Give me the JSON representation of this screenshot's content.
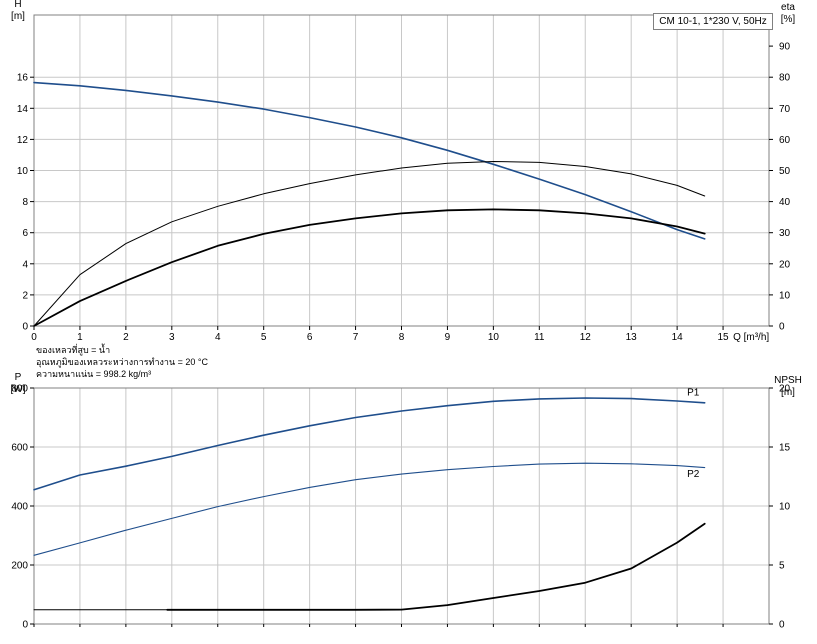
{
  "legend_box": {
    "text": "CM 10-1, 1*230 V, 50Hz"
  },
  "info": {
    "line1": "ของเหลวที่สูบ = น้ำ",
    "line2": "อุณหภูมิของเหลวระหว่างการทำงาน = 20 °C",
    "line3": "ความหนาแน่น = 998.2 kg/m³"
  },
  "chart_data": [
    {
      "type": "line",
      "title": "",
      "x_axis": {
        "label": "Q [m³/h]",
        "ticks": [
          0,
          1,
          2,
          3,
          4,
          5,
          6,
          7,
          8,
          9,
          10,
          11,
          12,
          13,
          14,
          15
        ],
        "range": [
          0,
          16
        ]
      },
      "y_axis_left": {
        "label": [
          "H",
          "[m]"
        ],
        "ticks": [
          0,
          2,
          4,
          6,
          8,
          10,
          12,
          14,
          16
        ],
        "range": [
          0,
          20
        ]
      },
      "y_axis_right": {
        "label": [
          "eta",
          "[%]"
        ],
        "ticks": [
          0,
          10,
          20,
          30,
          40,
          50,
          60,
          70,
          80,
          90
        ],
        "range": [
          0,
          100
        ]
      },
      "grid": true,
      "series": [
        {
          "name": "H",
          "axis": "left",
          "color": "#1f4e8c",
          "width": 1.6,
          "x": [
            0,
            1,
            2,
            3,
            4,
            5,
            6,
            7,
            8,
            9,
            10,
            11,
            12,
            13,
            14,
            14.6
          ],
          "y": [
            15.65,
            15.45,
            15.15,
            14.8,
            14.4,
            13.95,
            13.4,
            12.8,
            12.1,
            11.3,
            10.4,
            9.45,
            8.45,
            7.35,
            6.2,
            5.6
          ]
        },
        {
          "name": "eta_thin",
          "axis": "right",
          "color": "#000000",
          "width": 1.0,
          "x": [
            0,
            1,
            2,
            3,
            4,
            5,
            6,
            7,
            8,
            9,
            10,
            11,
            12,
            13,
            14,
            14.6
          ],
          "y": [
            0,
            16.5,
            26.5,
            33.5,
            38.5,
            42.5,
            45.8,
            48.6,
            50.8,
            52.3,
            52.9,
            52.6,
            51.3,
            48.9,
            45.2,
            41.8
          ]
        },
        {
          "name": "eta_bold",
          "axis": "right",
          "color": "#000000",
          "width": 1.8,
          "x": [
            0,
            1,
            2,
            3,
            4,
            5,
            6,
            7,
            8,
            9,
            10,
            11,
            12,
            13,
            14,
            14.6
          ],
          "y": [
            0,
            8,
            14.5,
            20.5,
            25.8,
            29.6,
            32.5,
            34.6,
            36.2,
            37.2,
            37.5,
            37.2,
            36.2,
            34.6,
            32.0,
            29.7
          ]
        }
      ]
    },
    {
      "type": "line",
      "title": "",
      "x_axis": {
        "range": [
          0,
          16
        ]
      },
      "y_axis_left": {
        "label": [
          "P",
          "[W]"
        ],
        "ticks": [
          0,
          200,
          400,
          600,
          800
        ],
        "range": [
          0,
          800
        ]
      },
      "y_axis_right": {
        "label": [
          "NPSH",
          "[m]"
        ],
        "ticks": [
          0,
          5,
          10,
          15,
          20
        ],
        "range": [
          0,
          20
        ]
      },
      "grid": true,
      "series": [
        {
          "name": "P1",
          "axis": "left",
          "color": "#1f4e8c",
          "width": 1.6,
          "label_at": [
            14.35,
            775
          ],
          "x": [
            0,
            1,
            2,
            3,
            4,
            5,
            6,
            7,
            8,
            9,
            10,
            11,
            12,
            13,
            14,
            14.6
          ],
          "y": [
            455,
            505,
            535,
            568,
            605,
            640,
            672,
            700,
            722,
            740,
            755,
            763,
            766,
            764,
            756,
            750
          ]
        },
        {
          "name": "P2",
          "axis": "left",
          "color": "#1f4e8c",
          "width": 1.1,
          "label_at": [
            14.35,
            498
          ],
          "x": [
            0,
            1,
            2,
            3,
            4,
            5,
            6,
            7,
            8,
            9,
            10,
            11,
            12,
            13,
            14,
            14.6
          ],
          "y": [
            233,
            275,
            318,
            358,
            398,
            432,
            463,
            489,
            508,
            523,
            534,
            542,
            545,
            543,
            537,
            530
          ]
        },
        {
          "name": "NPSH_thin",
          "axis": "right",
          "color": "#000000",
          "width": 1.0,
          "x": [
            0,
            1,
            2,
            3
          ],
          "y": [
            1.2,
            1.2,
            1.2,
            1.2
          ]
        },
        {
          "name": "NPSH_bold",
          "axis": "right",
          "color": "#000000",
          "width": 1.8,
          "x": [
            2.9,
            4,
            5,
            6,
            7,
            8,
            9,
            10,
            11,
            12,
            13,
            14,
            14.6
          ],
          "y": [
            1.2,
            1.2,
            1.2,
            1.2,
            1.2,
            1.22,
            1.6,
            2.2,
            2.8,
            3.5,
            4.7,
            6.9,
            8.5
          ]
        }
      ]
    }
  ]
}
